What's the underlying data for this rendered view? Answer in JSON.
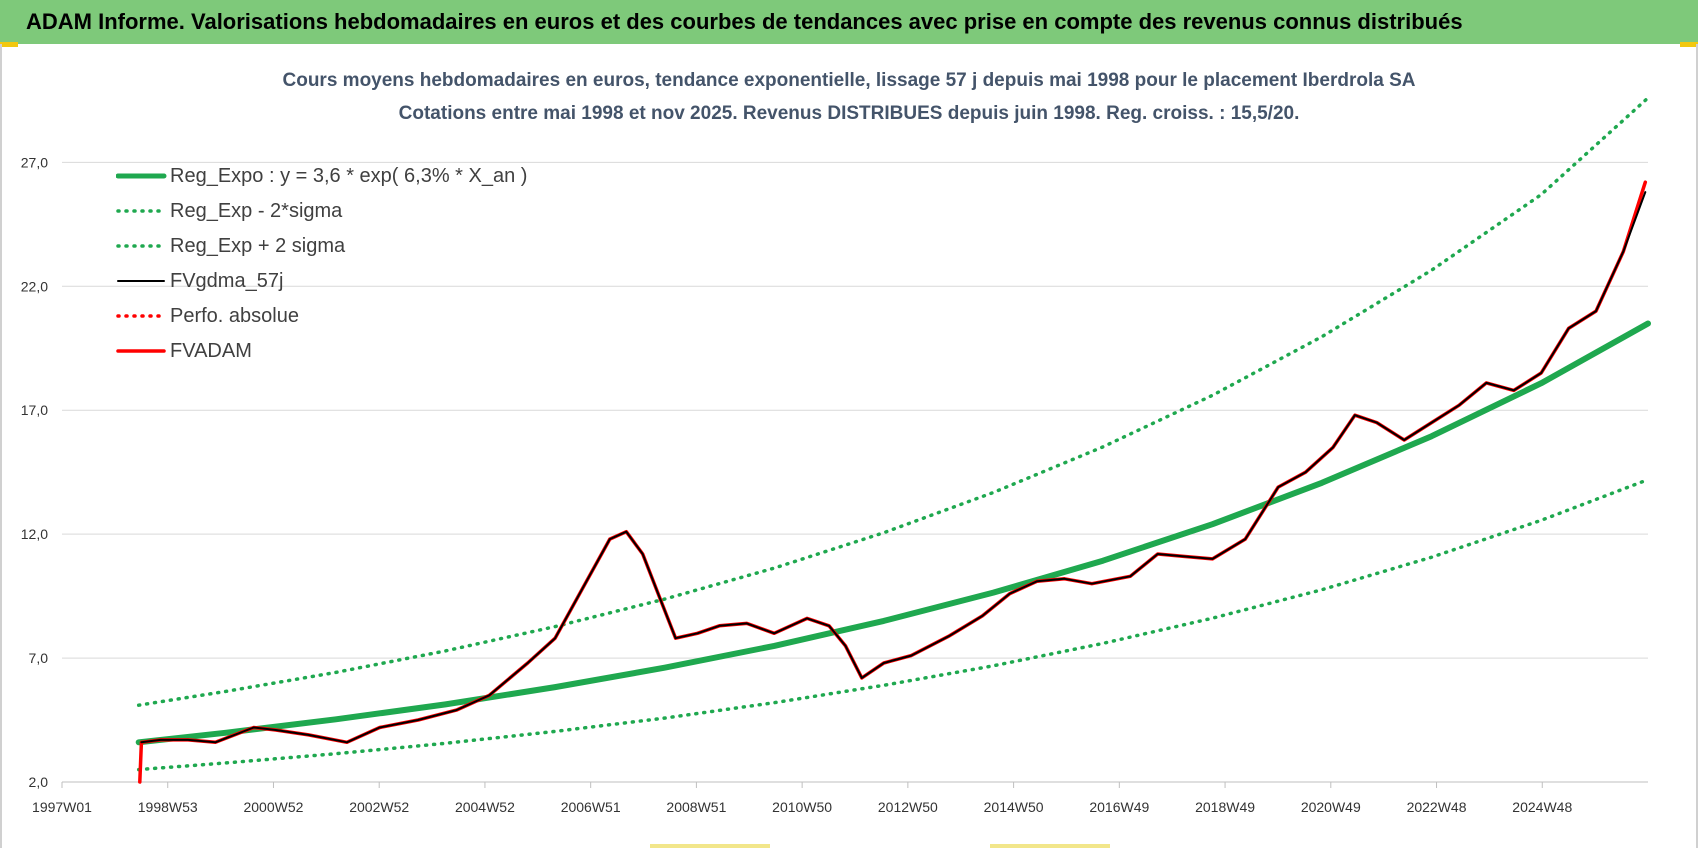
{
  "header": {
    "title": "ADAM Informe. Valorisations hebdomadaires en euros et des courbes de tendances avec prise en compte des revenus connus distribués"
  },
  "chart_data": {
    "type": "line",
    "title": "Cours moyens hebdomadaires en euros, tendance exponentielle, lissage 57 j depuis mai 1998 pour le placement Iberdrola SA",
    "subtitle": "Cotations entre mai 1998 et nov 2025. Revenus DISTRIBUES depuis juin 1998. Reg. croiss. : 15,5/20.",
    "xlabel": "",
    "ylabel": "",
    "x_tick_labels": [
      "1997W01",
      "1998W53",
      "2000W52",
      "2002W52",
      "2004W52",
      "2006W51",
      "2008W51",
      "2010W50",
      "2012W50",
      "2014W50",
      "2016W49",
      "2018W49",
      "2020W49",
      "2022W48",
      "2024W48"
    ],
    "y_ticks": [
      2.0,
      7.0,
      12.0,
      17.0,
      22.0,
      27.0
    ],
    "y_tick_labels": [
      "2,0",
      "7,0",
      "12,0",
      "17,0",
      "22,0",
      "27,0"
    ],
    "xlim": [
      1997.0,
      2025.95
    ],
    "ylim": [
      2.0,
      30.0
    ],
    "grid": "horizontal",
    "legend_position": "top-left",
    "series": [
      {
        "name": "Reg_Expo : y = 3,6 * exp( 6,3% *  X_an )",
        "color": "#1fa84f",
        "style": "solid",
        "x": [
          1998.4,
          2000,
          2002,
          2004,
          2006,
          2008,
          2010,
          2012,
          2014,
          2016,
          2018,
          2020,
          2022,
          2024,
          2025.95
        ],
        "values": [
          3.6,
          3.99,
          4.53,
          5.13,
          5.83,
          6.61,
          7.49,
          8.5,
          9.64,
          10.93,
          12.4,
          14.07,
          15.95,
          18.09,
          20.5
        ]
      },
      {
        "name": "Reg_Exp - 2*sigma",
        "color": "#1fa84f",
        "style": "dotted",
        "x": [
          1998.4,
          2000,
          2002,
          2004,
          2006,
          2008,
          2010,
          2012,
          2014,
          2016,
          2018,
          2020,
          2022,
          2024,
          2025.95
        ],
        "values": [
          2.5,
          2.77,
          3.14,
          3.56,
          4.04,
          4.58,
          5.2,
          5.9,
          6.69,
          7.59,
          8.61,
          9.76,
          11.07,
          12.56,
          14.2
        ]
      },
      {
        "name": "Reg_Exp + 2 sigma",
        "color": "#1fa84f",
        "style": "dotted",
        "x": [
          1998.4,
          2000,
          2002,
          2004,
          2006,
          2008,
          2010,
          2012,
          2014,
          2016,
          2018,
          2020,
          2022,
          2024,
          2025.95
        ],
        "values": [
          5.1,
          5.66,
          6.42,
          7.29,
          8.27,
          9.38,
          10.63,
          12.06,
          13.68,
          15.52,
          17.6,
          19.97,
          22.65,
          25.7,
          29.6
        ]
      },
      {
        "name": "FVgdma_57j",
        "color": "#000000",
        "style": "solid",
        "x": [
          1998.45,
          1998.8,
          1999.3,
          1999.8,
          2000.5,
          2000.9,
          2001.5,
          2002.2,
          2002.8,
          2003.5,
          2004.2,
          2004.8,
          2005.5,
          2006.0,
          2006.5,
          2007.0,
          2007.3,
          2007.6,
          2007.9,
          2008.2,
          2008.6,
          2009.0,
          2009.5,
          2010.0,
          2010.6,
          2011.0,
          2011.3,
          2011.6,
          2012.0,
          2012.5,
          2013.2,
          2013.8,
          2014.3,
          2014.8,
          2015.3,
          2015.8,
          2016.5,
          2017.0,
          2017.5,
          2018.0,
          2018.6,
          2019.2,
          2019.7,
          2020.2,
          2020.6,
          2021.0,
          2021.5,
          2022.0,
          2022.5,
          2023.0,
          2023.5,
          2024.0,
          2024.5,
          2025.0,
          2025.5,
          2025.9
        ],
        "values": [
          3.6,
          3.7,
          3.7,
          3.6,
          4.2,
          4.1,
          3.9,
          3.6,
          4.2,
          4.5,
          4.9,
          5.5,
          6.8,
          7.8,
          9.8,
          11.8,
          12.1,
          11.2,
          9.5,
          7.8,
          8.0,
          8.3,
          8.4,
          8.0,
          8.6,
          8.3,
          7.5,
          6.2,
          6.8,
          7.1,
          7.9,
          8.7,
          9.6,
          10.1,
          10.2,
          10.0,
          10.3,
          11.2,
          11.1,
          11.0,
          11.8,
          13.9,
          14.5,
          15.5,
          16.8,
          16.5,
          15.8,
          16.5,
          17.2,
          18.1,
          17.8,
          18.5,
          20.3,
          21.0,
          23.4,
          25.8
        ]
      },
      {
        "name": "Perfo. absolue",
        "color": "#ff0000",
        "style": "dotted",
        "x": [],
        "values": []
      },
      {
        "name": "FVADAM",
        "color": "#ff0000",
        "style": "solid",
        "x": [
          1998.42,
          1998.45,
          1998.8,
          1999.3,
          1999.8,
          2000.5,
          2000.9,
          2001.5,
          2002.2,
          2002.8,
          2003.5,
          2004.2,
          2004.8,
          2005.5,
          2006.0,
          2006.5,
          2007.0,
          2007.3,
          2007.6,
          2007.9,
          2008.2,
          2008.6,
          2009.0,
          2009.5,
          2010.0,
          2010.6,
          2011.0,
          2011.3,
          2011.6,
          2012.0,
          2012.5,
          2013.2,
          2013.8,
          2014.3,
          2014.8,
          2015.3,
          2015.8,
          2016.5,
          2017.0,
          2017.5,
          2018.0,
          2018.6,
          2019.2,
          2019.7,
          2020.2,
          2020.6,
          2021.0,
          2021.5,
          2022.0,
          2022.5,
          2023.0,
          2023.5,
          2024.0,
          2024.5,
          2025.0,
          2025.5,
          2025.9
        ],
        "values": [
          2.0,
          3.6,
          3.7,
          3.7,
          3.6,
          4.2,
          4.1,
          3.9,
          3.6,
          4.2,
          4.5,
          4.9,
          5.5,
          6.8,
          7.8,
          9.8,
          11.8,
          12.1,
          11.2,
          9.5,
          7.8,
          8.0,
          8.3,
          8.4,
          8.0,
          8.6,
          8.3,
          7.5,
          6.2,
          6.8,
          7.1,
          7.9,
          8.7,
          9.6,
          10.1,
          10.2,
          10.0,
          10.3,
          11.2,
          11.1,
          11.0,
          11.8,
          13.9,
          14.5,
          15.5,
          16.8,
          16.5,
          15.8,
          16.5,
          17.2,
          18.1,
          17.8,
          18.5,
          20.3,
          21.0,
          23.4,
          26.2
        ]
      }
    ]
  }
}
